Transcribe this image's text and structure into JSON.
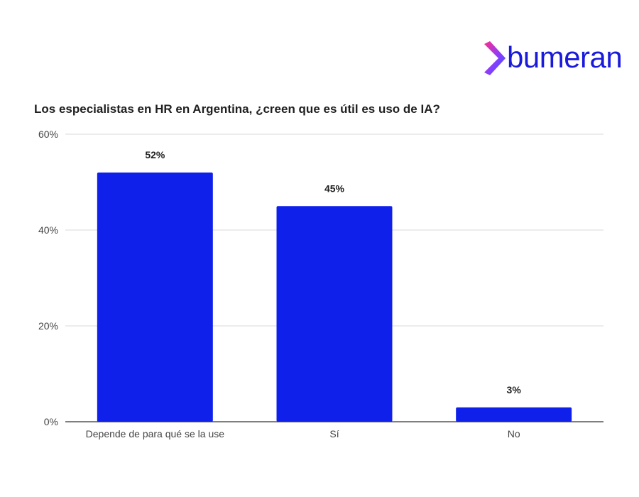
{
  "brand": {
    "name": "bumeran",
    "logo_icon": "chevron-arrow-logo",
    "color": "#1a1adb"
  },
  "chart_data": {
    "type": "bar",
    "title": "Los especialistas en HR en Argentina, ¿creen que es útil es uso de IA?",
    "categories": [
      "Depende de para qué se la use",
      "Sí",
      "No"
    ],
    "values": [
      52,
      45,
      3
    ],
    "data_labels": [
      "52%",
      "45%",
      "3%"
    ],
    "y_ticks": [
      "0%",
      "20%",
      "40%",
      "60%"
    ],
    "y_tick_values": [
      0,
      20,
      40,
      60
    ],
    "ylim": [
      0,
      60
    ],
    "xlabel": "",
    "ylabel": "",
    "grid": true,
    "bar_color": "#0f20eb",
    "grid_color": "#d9d9d9",
    "axis_color": "#333333"
  }
}
